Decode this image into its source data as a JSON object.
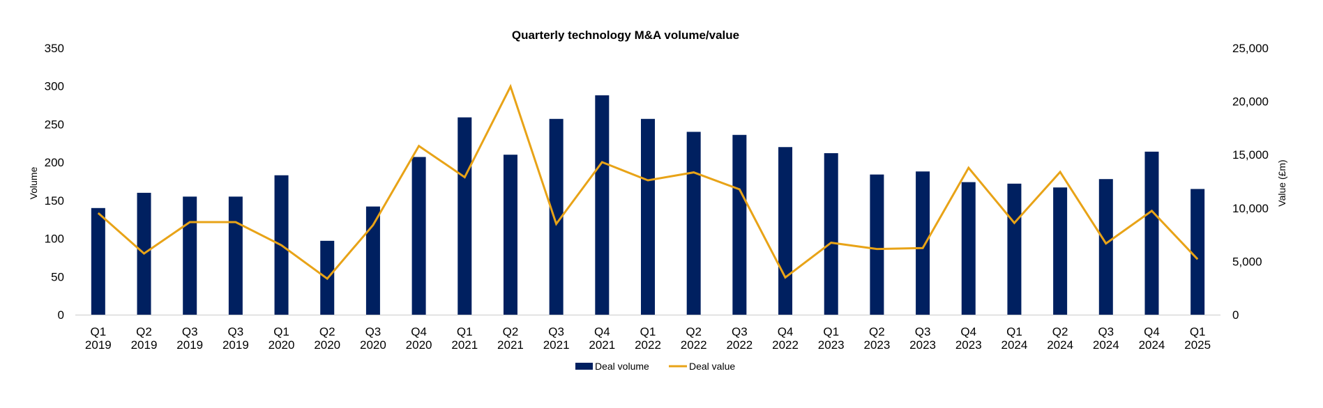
{
  "chart_data": {
    "type": "bar",
    "title": "Quarterly technology M&A volume/value",
    "categories": [
      [
        "Q1",
        "2019"
      ],
      [
        "Q2",
        "2019"
      ],
      [
        "Q3",
        "2019"
      ],
      [
        "Q3",
        "2019"
      ],
      [
        "Q1",
        "2020"
      ],
      [
        "Q2",
        "2020"
      ],
      [
        "Q3",
        "2020"
      ],
      [
        "Q4",
        "2020"
      ],
      [
        "Q1",
        "2021"
      ],
      [
        "Q2",
        "2021"
      ],
      [
        "Q3",
        "2021"
      ],
      [
        "Q4",
        "2021"
      ],
      [
        "Q1",
        "2022"
      ],
      [
        "Q2",
        "2022"
      ],
      [
        "Q3",
        "2022"
      ],
      [
        "Q4",
        "2022"
      ],
      [
        "Q1",
        "2023"
      ],
      [
        "Q2",
        "2023"
      ],
      [
        "Q3",
        "2023"
      ],
      [
        "Q4",
        "2023"
      ],
      [
        "Q1",
        "2024"
      ],
      [
        "Q2",
        "2024"
      ],
      [
        "Q3",
        "2024"
      ],
      [
        "Q4",
        "2024"
      ],
      [
        "Q1",
        "2025"
      ]
    ],
    "series": [
      {
        "name": "Deal volume",
        "type": "bar",
        "axis": "left",
        "color": "#002060",
        "values": [
          140,
          160,
          155,
          155,
          183,
          97,
          142,
          207,
          259,
          210,
          257,
          288,
          257,
          240,
          236,
          220,
          212,
          184,
          188,
          174,
          172,
          167,
          178,
          214,
          165
        ]
      },
      {
        "name": "Deal value",
        "type": "line",
        "axis": "right",
        "color": "#E8A317",
        "values": [
          9530,
          5740,
          8680,
          8680,
          6510,
          3380,
          8400,
          15820,
          12890,
          21390,
          8510,
          14300,
          12600,
          13340,
          11750,
          3490,
          6750,
          6160,
          6250,
          13770,
          8600,
          13380,
          6680,
          9730,
          5200
        ]
      }
    ],
    "y_left": {
      "label": "Volume",
      "ylim": [
        0,
        350
      ],
      "ticks": [
        0,
        50,
        100,
        150,
        200,
        250,
        300,
        350
      ],
      "tick_labels": [
        "0",
        "50",
        "100",
        "150",
        "200",
        "250",
        "300",
        "350"
      ]
    },
    "y_right": {
      "label": "Value (£m)",
      "ylim": [
        0,
        25000
      ],
      "ticks": [
        0,
        5000,
        10000,
        15000,
        20000,
        25000
      ],
      "tick_labels": [
        "0",
        "5,000",
        "10,000",
        "15,000",
        "20,000",
        "25,000"
      ]
    },
    "xlabel": "",
    "grid": false,
    "legend": {
      "position": "bottom-center",
      "entries": [
        "Deal volume",
        "Deal value"
      ]
    }
  }
}
